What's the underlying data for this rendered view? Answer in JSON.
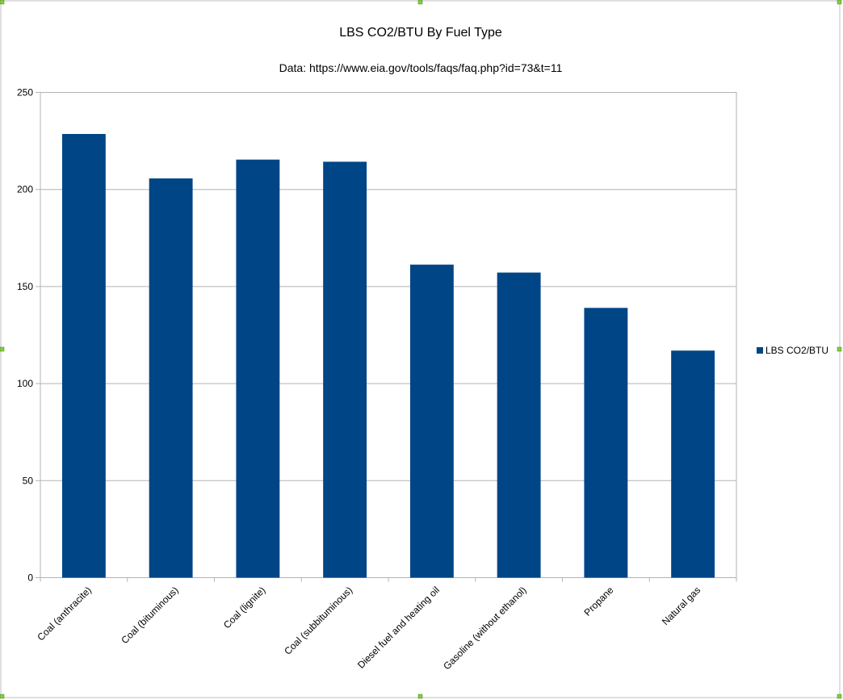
{
  "chart_data": {
    "type": "bar",
    "title": "LBS CO2/BTU By Fuel Type",
    "subtitle": "Data: https://www.eia.gov/tools/faqs/faq.php?id=73&t=11",
    "categories": [
      "Coal (anthracite)",
      "Coal (bituminous)",
      "Coal (lignite)",
      "Coal (subbituminous)",
      "Diesel fuel and heating oil",
      "Gasoline (without ethanol)",
      "Propane",
      "Natural gas"
    ],
    "series": [
      {
        "name": "LBS CO2/BTU",
        "values": [
          228.6,
          205.7,
          215.4,
          214.3,
          161.3,
          157.2,
          139.0,
          117.0
        ]
      }
    ],
    "y_ticks": [
      "0",
      "50",
      "100",
      "150",
      "200",
      "250"
    ],
    "ylim": [
      0,
      250
    ],
    "xlabel": "",
    "ylabel": "",
    "grid": "horizontal",
    "legend_position": "right",
    "colors": {
      "bar": "#004586",
      "grid": "#b3b3b3",
      "axis": "#b3b3b3",
      "selection_handle": "#7fd13b"
    }
  }
}
